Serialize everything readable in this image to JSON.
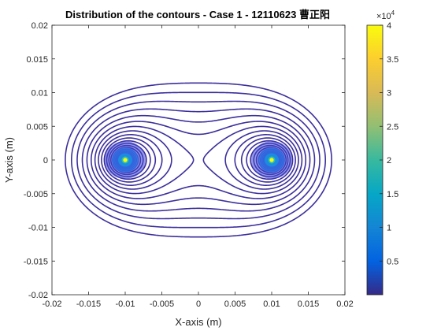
{
  "chart_data": {
    "type": "contour",
    "title": "Distribution of the contours - Case 1 - 12110623 曹正阳",
    "xlabel": "X-axis (m)",
    "ylabel": "Y-axis (m)",
    "xlim": [
      -0.02,
      0.02
    ],
    "ylim": [
      -0.02,
      0.02
    ],
    "x_ticks": [
      "-0.02",
      "-0.015",
      "-0.01",
      "-0.005",
      "0",
      "0.005",
      "0.01",
      "0.015",
      "0.02"
    ],
    "y_ticks": [
      "-0.02",
      "-0.015",
      "-0.01",
      "-0.005",
      "0",
      "0.005",
      "0.01",
      "0.015",
      "0.02"
    ],
    "sources": [
      {
        "x": -0.01,
        "y": 0
      },
      {
        "x": 0.01,
        "y": 0
      }
    ],
    "colorbar": {
      "range": [
        0,
        40000
      ],
      "tick_values": [
        0.5,
        1,
        1.5,
        2,
        2.5,
        3,
        3.5,
        4
      ],
      "tick_labels": [
        "0.5",
        "1",
        "1.5",
        "2",
        "2.5",
        "3",
        "3.5",
        "4"
      ],
      "exponent_base": "×10",
      "exponent_power": "4",
      "colormap": "parula",
      "colormap_stops": [
        "#352a87",
        "#0363e1",
        "#1485d4",
        "#06a7c6",
        "#38b99e",
        "#92bf73",
        "#d9ba56",
        "#fcce2e",
        "#f9fb0e"
      ]
    }
  }
}
